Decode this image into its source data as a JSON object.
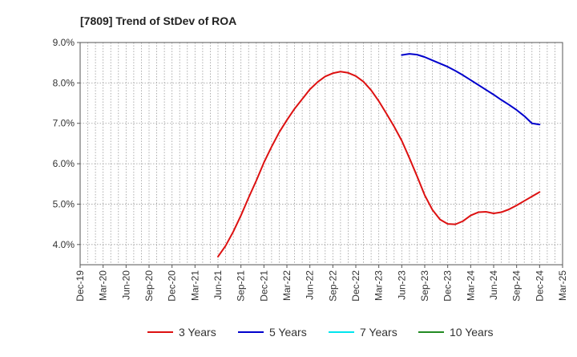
{
  "chart_data": {
    "type": "line",
    "title": "[7809]  Trend of StDev of ROA",
    "xlabel": "",
    "ylabel": "",
    "ylim": [
      3.5,
      9.0
    ],
    "y_ticks": [
      4.0,
      5.0,
      6.0,
      7.0,
      8.0,
      9.0
    ],
    "y_tick_labels": [
      "4.0%",
      "5.0%",
      "6.0%",
      "7.0%",
      "8.0%",
      "9.0%"
    ],
    "x_tick_labels": [
      "Dec-19",
      "Mar-20",
      "Jun-20",
      "Sep-20",
      "Dec-20",
      "Mar-21",
      "Jun-21",
      "Sep-21",
      "Dec-21",
      "Mar-22",
      "Jun-22",
      "Sep-22",
      "Dec-22",
      "Mar-23",
      "Jun-23",
      "Sep-23",
      "Dec-23",
      "Mar-24",
      "Jun-24",
      "Sep-24",
      "Dec-24",
      "Mar-25"
    ],
    "grid": true,
    "legend_position": "bottom",
    "series": [
      {
        "name": "3 Years",
        "color": "#dd1111",
        "x": [
          "Jun-21",
          "Jul-21",
          "Aug-21",
          "Sep-21",
          "Oct-21",
          "Nov-21",
          "Dec-21",
          "Jan-22",
          "Feb-22",
          "Mar-22",
          "Apr-22",
          "May-22",
          "Jun-22",
          "Jul-22",
          "Aug-22",
          "Sep-22",
          "Oct-22",
          "Nov-22",
          "Dec-22",
          "Jan-23",
          "Feb-23",
          "Mar-23",
          "Apr-23",
          "May-23",
          "Jun-23",
          "Jul-23",
          "Aug-23",
          "Sep-23",
          "Oct-23",
          "Nov-23",
          "Dec-23",
          "Jan-24",
          "Feb-24",
          "Mar-24",
          "Apr-24",
          "May-24",
          "Jun-24",
          "Jul-24",
          "Aug-24",
          "Sep-24",
          "Oct-24",
          "Nov-24",
          "Dec-24"
        ],
        "values": [
          3.7,
          3.97,
          4.32,
          4.72,
          5.16,
          5.58,
          6.03,
          6.42,
          6.78,
          7.08,
          7.36,
          7.6,
          7.84,
          8.02,
          8.16,
          8.24,
          8.28,
          8.25,
          8.17,
          8.03,
          7.82,
          7.55,
          7.24,
          6.92,
          6.57,
          6.14,
          5.69,
          5.22,
          4.86,
          4.62,
          4.51,
          4.5,
          4.58,
          4.72,
          4.8,
          4.81,
          4.77,
          4.8,
          4.87,
          4.97,
          5.08,
          5.19,
          5.3
        ]
      },
      {
        "name": "5 Years",
        "color": "#0000cc",
        "x": [
          "Jun-23",
          "Jul-23",
          "Aug-23",
          "Sep-23",
          "Oct-23",
          "Nov-23",
          "Dec-23",
          "Jan-24",
          "Feb-24",
          "Mar-24",
          "Apr-24",
          "May-24",
          "Jun-24",
          "Jul-24",
          "Aug-24",
          "Sep-24",
          "Oct-24",
          "Nov-24",
          "Dec-24"
        ],
        "values": [
          8.69,
          8.72,
          8.7,
          8.64,
          8.56,
          8.48,
          8.4,
          8.3,
          8.19,
          8.07,
          7.95,
          7.83,
          7.71,
          7.58,
          7.46,
          7.33,
          7.18,
          7.0,
          6.97
        ]
      },
      {
        "name": "7 Years",
        "color": "#00e5ee",
        "x": [],
        "values": []
      },
      {
        "name": "10 Years",
        "color": "#228b22",
        "x": [],
        "values": []
      }
    ]
  }
}
